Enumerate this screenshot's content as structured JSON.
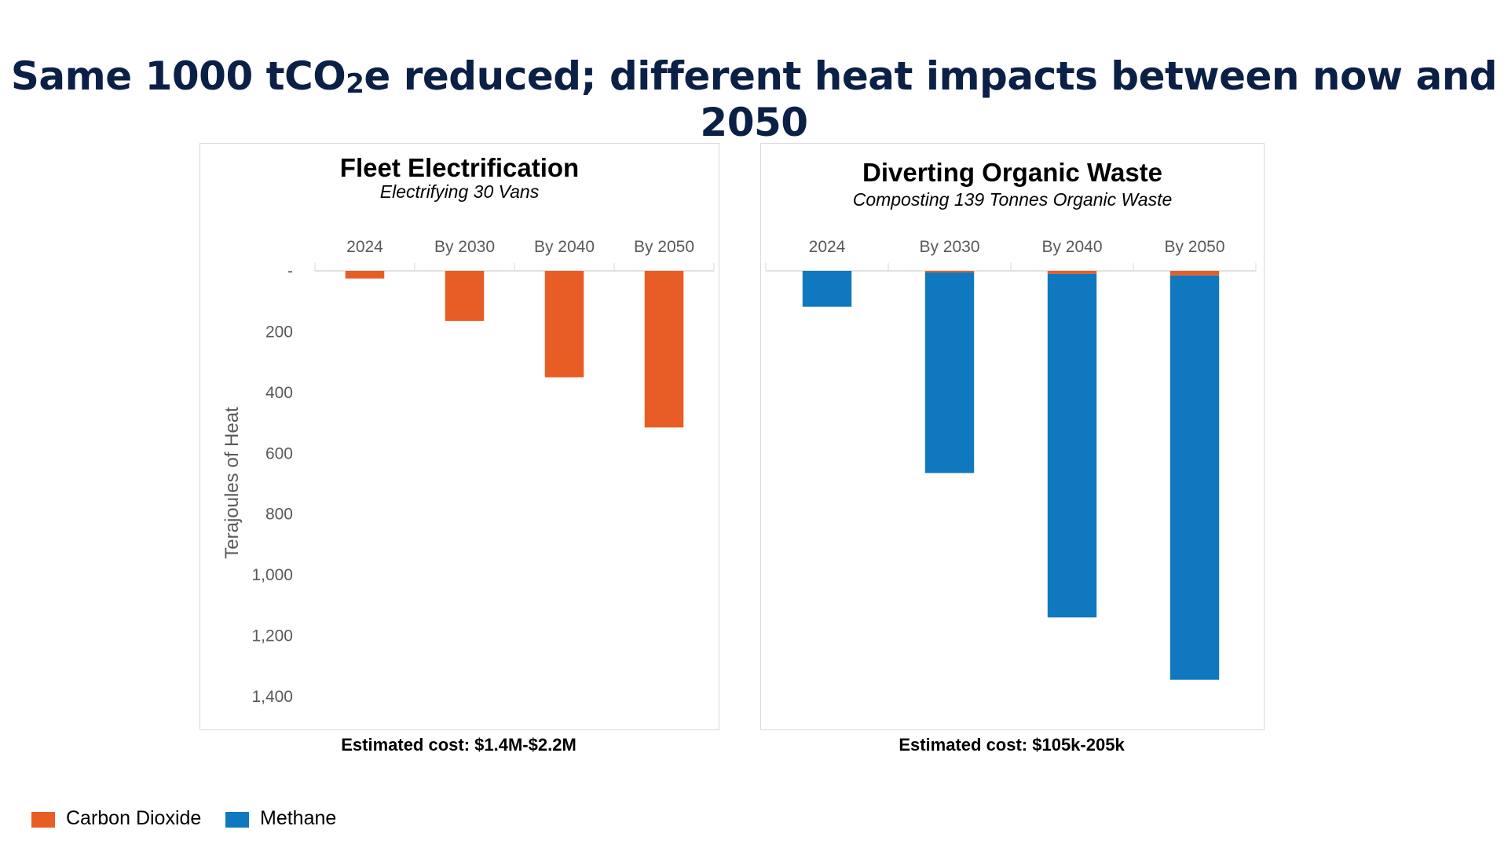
{
  "slide": {
    "title_prefix": "Same 1000 tCO",
    "title_sub": "2",
    "title_suffix": "e reduced; different heat impacts between now and 2050"
  },
  "colors": {
    "carbon_dioxide": "#e85d25",
    "methane": "#1078bf",
    "axis_text": "#595959",
    "gridline": "#d9d9d9"
  },
  "chart_data": [
    {
      "type": "bar",
      "stacked": true,
      "title": "Fleet Electrification",
      "subtitle": "Electrifying 30 Vans",
      "categories": [
        "2024",
        "By 2030",
        "By 2040",
        "By 2050"
      ],
      "series": [
        {
          "name": "Carbon Dioxide",
          "values": [
            25,
            165,
            350,
            515
          ]
        },
        {
          "name": "Methane",
          "values": [
            0,
            0,
            0,
            0
          ]
        }
      ],
      "ylabel": "Terajoules of Heat",
      "ylim": [
        0,
        1400
      ],
      "y_inverted": true,
      "yticks": [
        0,
        200,
        400,
        600,
        800,
        1000,
        1200,
        1400
      ],
      "ytick_labels": [
        "-",
        "200",
        "400",
        "600",
        "800",
        "1,000",
        "1,200",
        "1,400"
      ],
      "cost": "Estimated cost: $1.4M-$2.2M"
    },
    {
      "type": "bar",
      "stacked": true,
      "title": "Diverting Organic Waste",
      "subtitle": "Composting 139 Tonnes Organic Waste",
      "categories": [
        "2024",
        "By 2030",
        "By 2040",
        "By 2050"
      ],
      "series": [
        {
          "name": "Carbon Dioxide",
          "values": [
            0,
            5,
            10,
            15
          ]
        },
        {
          "name": "Methane",
          "values": [
            118,
            660,
            1130,
            1330
          ]
        }
      ],
      "ylim": [
        0,
        1400
      ],
      "y_inverted": true,
      "cost": "Estimated cost: $105k-205k"
    }
  ],
  "legend": [
    {
      "label": "Carbon Dioxide",
      "color_key": "carbon_dioxide"
    },
    {
      "label": "Methane",
      "color_key": "methane"
    }
  ]
}
